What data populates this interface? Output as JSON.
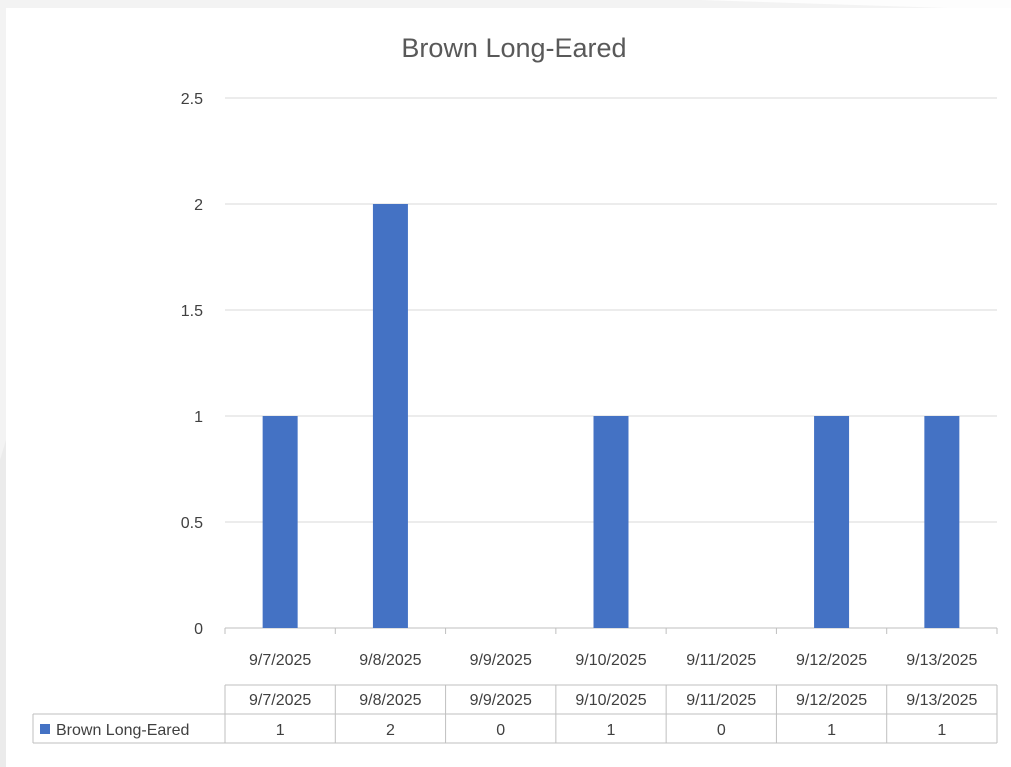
{
  "chart_data": {
    "type": "bar",
    "title": "Brown Long-Eared",
    "categories": [
      "9/7/2025",
      "9/8/2025",
      "9/9/2025",
      "9/10/2025",
      "9/11/2025",
      "9/12/2025",
      "9/13/2025"
    ],
    "series": [
      {
        "name": "Brown Long-Eared",
        "values": [
          1,
          2,
          0,
          1,
          0,
          1,
          1
        ],
        "color": "#4472c4"
      }
    ],
    "yticks": [
      "0",
      "0.5",
      "1",
      "1.5",
      "2",
      "2.5"
    ],
    "ylim": [
      0,
      2.5
    ],
    "grid": true,
    "legend": "data-table",
    "data_table": true
  }
}
